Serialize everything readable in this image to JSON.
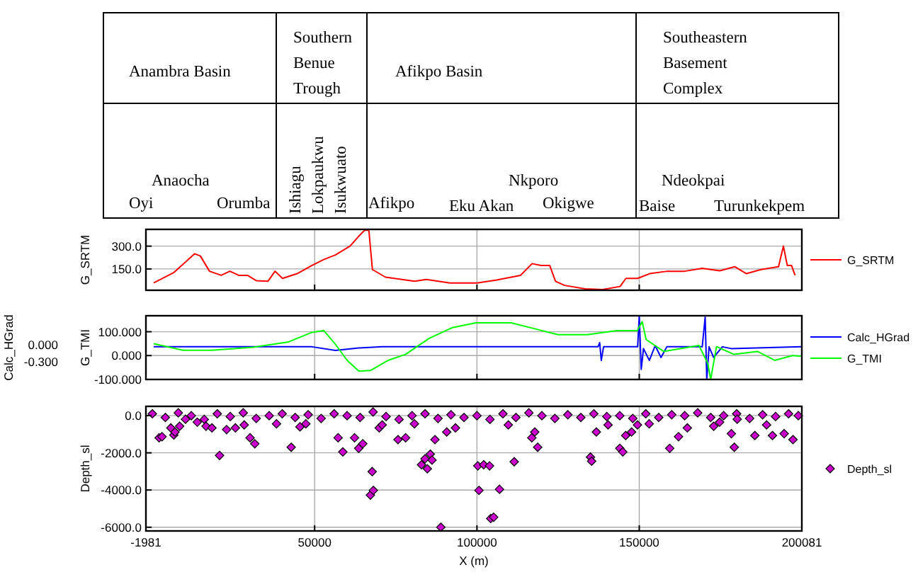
{
  "chart_data": [
    {
      "type": "other",
      "annotations": [
        "Anambra Basin",
        "Southern Benue Trough",
        "Afikpo Basin",
        "Southeastern Basement Complex",
        "Anaocha",
        "Oyi",
        "Orumba",
        "Ishiagu",
        "Lokpaukwu",
        "Isukwuato",
        "Afikpo",
        "Eku Akan",
        "Nkporo",
        "Okigwe",
        "Ndeokpai",
        "Baise",
        "Turunkekpem"
      ]
    },
    {
      "type": "line",
      "ylabel": "G_SRTM",
      "xlim": [
        -1981,
        200081
      ],
      "xticks": [
        -1981,
        50000,
        100000,
        150000,
        200081
      ],
      "ylim": [
        10,
        410
      ],
      "yticks": [
        {
          "value": 150,
          "label": "150.0"
        },
        {
          "value": 300,
          "label": "300.0"
        }
      ],
      "grid": true,
      "legend": "right",
      "tick_labels": "y",
      "series": [
        {
          "name": "G_SRTM",
          "color": "#ff0000",
          "x": [
            400,
            6670,
            13000,
            14800,
            17600,
            21200,
            23900,
            26600,
            29300,
            32000,
            35600,
            37800,
            40100,
            44600,
            49200,
            52800,
            56400,
            60900,
            63600,
            65400,
            66700,
            67800,
            71800,
            80800,
            84400,
            91700,
            100000,
            106100,
            113400,
            117000,
            119700,
            122400,
            124200,
            127000,
            133300,
            138700,
            144100,
            145900,
            149500,
            153200,
            158600,
            164000,
            169400,
            174800,
            179400,
            183000,
            187500,
            192900,
            194400,
            195600,
            196900,
            198000
          ],
          "values": [
            58,
            127,
            250,
            235,
            135,
            108,
            135,
            108,
            108,
            73,
            69,
            135,
            88,
            119,
            173,
            212,
            242,
            300,
            365,
            404,
            404,
            146,
            96,
            69,
            81,
            58,
            58,
            77,
            108,
            185,
            173,
            173,
            69,
            42,
            19,
            15,
            35,
            88,
            88,
            119,
            135,
            135,
            154,
            138,
            165,
            119,
            146,
            165,
            300,
            173,
            173,
            108
          ]
        }
      ]
    },
    {
      "type": "line",
      "ylabel": "G_TMI",
      "y2label": "Calc_HGrad",
      "xlim": [
        -1981,
        200081
      ],
      "xticks": [
        -1981,
        50000,
        100000,
        150000,
        200081
      ],
      "ylim": [
        -100,
        167
      ],
      "yticks": [
        {
          "value": -100,
          "label": "-100.000"
        },
        {
          "value": 0,
          "label": "0.000"
        },
        {
          "value": 100,
          "label": "100.000"
        }
      ],
      "y2lim": [
        -0.61,
        0.5
      ],
      "y2ticks": [
        {
          "value": -0.3,
          "label": "-0.300"
        },
        {
          "value": 0,
          "label": "0.000"
        }
      ],
      "grid": true,
      "legend": "right",
      "tick_labels": "y",
      "series": [
        {
          "name": "Calc_HGrad",
          "color": "#0000ff",
          "axis": "y2",
          "x": [
            400,
            49200,
            56400,
            63600,
            70800,
            100000,
            135100,
            137300,
            137800,
            138300,
            139000,
            149500,
            150000,
            150600,
            151300,
            153100,
            154900,
            156700,
            158500,
            169400,
            170300,
            170800,
            171500,
            172900,
            175600,
            178300,
            199900
          ],
          "values": [
            -0.041,
            -0.041,
            -0.103,
            -0.062,
            -0.041,
            -0.041,
            -0.041,
            -0.041,
            0.031,
            -0.279,
            -0.041,
            -0.041,
            0.496,
            -0.434,
            -0.072,
            -0.279,
            -0.021,
            -0.227,
            -0.041,
            -0.041,
            0.476,
            -0.61,
            -0.041,
            -0.227,
            -0.041,
            -0.072,
            -0.041
          ]
        },
        {
          "name": "G_TMI",
          "color": "#00ff00",
          "x": [
            400,
            9400,
            18400,
            31100,
            42000,
            49200,
            52800,
            56400,
            60000,
            63600,
            67200,
            72600,
            78000,
            85300,
            92500,
            99700,
            110500,
            117800,
            125000,
            134000,
            143100,
            149400,
            150900,
            152100,
            157500,
            162900,
            168400,
            171100,
            172000,
            173800,
            179200,
            186400,
            191800,
            197200,
            199900
          ],
          "values": [
            50,
            22.5,
            22.5,
            35,
            57.5,
            97.5,
            105,
            47.5,
            -20,
            -65,
            -62.5,
            -20,
            5,
            72.5,
            117.5,
            137.5,
            137.5,
            112.5,
            87.5,
            87.5,
            105,
            105,
            142.5,
            67.5,
            17.5,
            30,
            42.5,
            -32.5,
            -100,
            37.5,
            5,
            17.5,
            -20,
            0,
            -2.5
          ]
        }
      ]
    },
    {
      "type": "scatter",
      "ylabel": "Depth_sl",
      "xlabel": "X (m)",
      "xlim": [
        -1981,
        200081
      ],
      "xticks": [
        -1981,
        50000,
        100000,
        150000,
        200081
      ],
      "ylim": [
        -6200,
        500
      ],
      "yticks": [
        {
          "value": -6000,
          "label": "-6000.0"
        },
        {
          "value": -4000,
          "label": "-4000.0"
        },
        {
          "value": -2000,
          "label": "-2000.0"
        },
        {
          "value": 0,
          "label": "0.0"
        }
      ],
      "grid": true,
      "legend": "right",
      "marker": "diamond",
      "series": [
        {
          "name": "Depth_sl",
          "color": "#cc00cc",
          "x": [
            0,
            4000,
            8000,
            12000,
            16000,
            20000,
            24000,
            28000,
            32000,
            36000,
            40000,
            44000,
            48000,
            52000,
            56000,
            60000,
            64000,
            68000,
            72000,
            76000,
            80000,
            84000,
            88000,
            92000,
            96000,
            100000,
            104000,
            108000,
            112000,
            116000,
            120000,
            124000,
            128000,
            132000,
            136000,
            140000,
            144000,
            148000,
            152000,
            156000,
            160000,
            164000,
            168000,
            172000,
            176000,
            180000,
            184000,
            188000,
            192000,
            196000,
            199000,
            2090,
            2990,
            5700,
            6610,
            6970,
            8410,
            10220,
            13840,
            16550,
            18360,
            20700,
            22880,
            25590,
            28300,
            30110,
            31560,
            38250,
            42770,
            45480,
            47290,
            57230,
            58680,
            62290,
            63560,
            64830,
            67180,
            67720,
            68080,
            69890,
            70790,
            75670,
            78020,
            80740,
            82910,
            83990,
            84710,
            85620,
            86160,
            87060,
            88870,
            90680,
            93390,
            100260,
            100620,
            102070,
            103880,
            104240,
            105140,
            106950,
            109660,
            111470,
            116900,
            117800,
            118700,
            134970,
            135330,
            136780,
            140390,
            144010,
            144920,
            145820,
            147630,
            149440,
            153060,
            159380,
            162100,
            164810,
            172940,
            174750,
            178370,
            179270,
            180180,
            185600,
            189220,
            191020,
            194640,
            197350
          ],
          "values": [
            100,
            -100,
            150,
            0,
            -200,
            100,
            -50,
            150,
            -150,
            0,
            100,
            -100,
            50,
            -150,
            100,
            0,
            -100,
            200,
            -50,
            -200,
            0,
            100,
            -150,
            50,
            -100,
            0,
            -200,
            100,
            -100,
            150,
            0,
            -150,
            50,
            -100,
            100,
            -50,
            0,
            -150,
            100,
            -100,
            50,
            0,
            150,
            -100,
            0,
            100,
            -150,
            50,
            -50,
            100,
            0,
            -1190,
            -1130,
            -660,
            -1040,
            -880,
            -570,
            -190,
            -350,
            -570,
            -660,
            -2140,
            -750,
            -660,
            -500,
            -1190,
            -1510,
            -440,
            -1700,
            -600,
            -440,
            -1190,
            -1950,
            -1190,
            -1760,
            -1510,
            -4270,
            -3010,
            -4020,
            -660,
            -500,
            -1290,
            -1190,
            -440,
            -2640,
            -2320,
            -2860,
            -2070,
            -2390,
            -1290,
            -6000,
            -880,
            -660,
            -2700,
            -4020,
            -2640,
            -2700,
            -5530,
            -5460,
            -3960,
            -500,
            -2480,
            -1190,
            -880,
            -1700,
            -2230,
            -2450,
            -880,
            -500,
            -1760,
            -1950,
            -1070,
            -880,
            -500,
            -440,
            -1760,
            -1130,
            -660,
            -570,
            -350,
            -970,
            -1700,
            -190,
            -1070,
            -500,
            -1070,
            -970,
            -1290
          ]
        }
      ]
    }
  ]
}
